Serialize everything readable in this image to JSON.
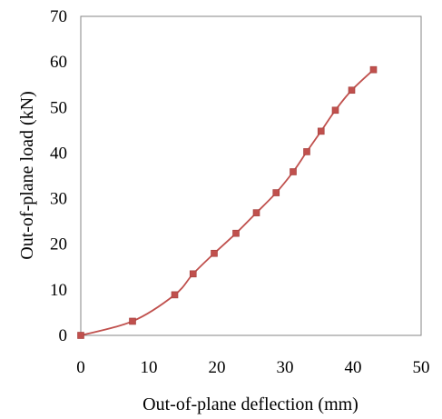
{
  "chart_data": {
    "type": "line",
    "title": "",
    "xlabel": "Out-of-plane deflection (mm)",
    "ylabel": "Out-of-plane load (kN)",
    "xlim": [
      0,
      50
    ],
    "ylim": [
      0,
      70
    ],
    "xticks": [
      "0",
      "10",
      "20",
      "30",
      "40",
      "50"
    ],
    "yticks": [
      "0",
      "10",
      "20",
      "30",
      "40",
      "50",
      "60",
      "70"
    ],
    "grid": false,
    "legend": "none",
    "series": [
      {
        "color": "#c0504d",
        "marker": "square",
        "x": [
          0,
          7.6,
          13.8,
          16.5,
          19.6,
          22.8,
          25.8,
          28.7,
          31.2,
          33.2,
          35.3,
          37.4,
          39.8,
          43.0
        ],
        "y": [
          0,
          3.1,
          8.9,
          13.5,
          18.0,
          22.4,
          26.9,
          31.3,
          35.9,
          40.3,
          44.8,
          49.4,
          53.8,
          58.3
        ]
      }
    ]
  }
}
